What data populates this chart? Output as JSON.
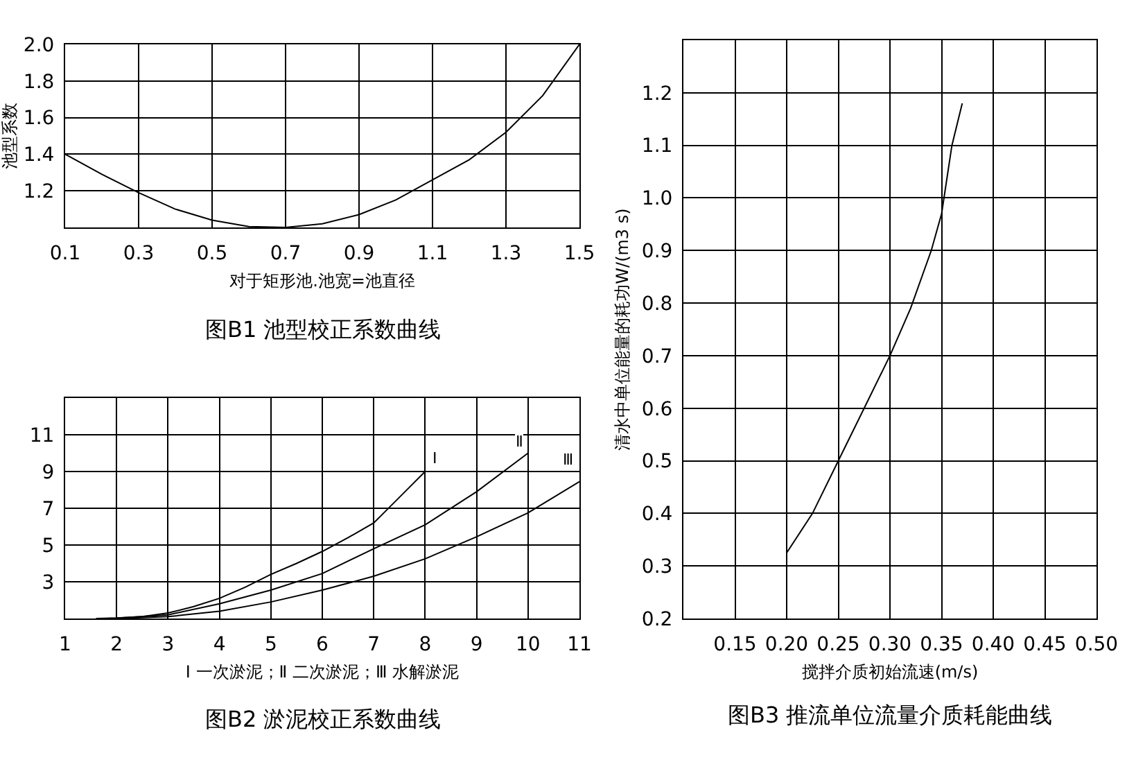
{
  "chart_data": [
    {
      "type": "line",
      "title": "图B1 池型校正系数曲线",
      "xlabel": "对于矩形池.池宽=池直径",
      "ylabel": "池型系数",
      "series": [
        {
          "color": "#000000",
          "x": [
            0.1,
            0.2,
            0.3,
            0.4,
            0.5,
            0.6,
            0.7,
            0.8,
            0.9,
            1.0,
            1.1,
            1.2,
            1.3,
            1.4,
            1.5
          ],
          "values": [
            1.4,
            1.29,
            1.19,
            1.1,
            1.04,
            1.005,
            1.0,
            1.02,
            1.07,
            1.15,
            1.26,
            1.37,
            1.52,
            1.72,
            2.0
          ]
        }
      ],
      "xlim": [
        0.1,
        1.5
      ],
      "ylim": [
        1.0,
        2.0
      ],
      "xticks": [
        0.1,
        0.3,
        0.5,
        0.7,
        0.9,
        1.1,
        1.3,
        1.5
      ],
      "yticks": [
        1.2,
        1.4,
        1.6,
        1.8,
        {
          "value": 2.0,
          "label": "2.0"
        }
      ],
      "grid": true
    },
    {
      "type": "line",
      "title": "图B2 淤泥校正系数曲线",
      "xlabel": "Ⅰ 一次淤泥；Ⅱ 二次淤泥；Ⅲ 水解淤泥",
      "series": [
        {
          "name": "Ⅰ",
          "color": "#000000",
          "x": [
            1.6,
            2,
            2.5,
            3,
            3.5,
            4,
            4.5,
            5,
            5.5,
            6,
            6.5,
            7,
            7.5,
            8
          ],
          "values": [
            1.0,
            1.03,
            1.1,
            1.3,
            1.65,
            2.1,
            2.7,
            3.4,
            4.0,
            4.65,
            5.4,
            6.2,
            7.6,
            9.0
          ]
        },
        {
          "name": "Ⅱ",
          "color": "#000000",
          "x": [
            1.8,
            2,
            3,
            4,
            5,
            6,
            7,
            8,
            9,
            10
          ],
          "values": [
            1.0,
            1.02,
            1.2,
            1.8,
            2.55,
            3.45,
            4.8,
            6.1,
            7.9,
            10.0
          ]
        },
        {
          "name": "Ⅲ",
          "color": "#000000",
          "x": [
            2,
            3,
            4,
            5,
            6,
            7,
            8,
            9,
            10,
            11
          ],
          "values": [
            1.0,
            1.1,
            1.4,
            1.9,
            2.55,
            3.3,
            4.25,
            5.45,
            6.75,
            8.45
          ]
        }
      ],
      "xlim": [
        1,
        11
      ],
      "ylim": [
        1,
        13
      ],
      "xticks": [
        1,
        2,
        3,
        4,
        5,
        6,
        7,
        8,
        9,
        10,
        11
      ],
      "yticks": [
        3,
        5,
        7,
        9,
        11
      ],
      "grid": true
    },
    {
      "type": "line",
      "title": "图B3 推流单位流量介质耗能曲线",
      "xlabel": "搅拌介质初始流速(m/s)",
      "ylabel": "清水中单位能量的耗功W/(m3 s)",
      "series": [
        {
          "color": "#000000",
          "x": [
            0.2,
            0.225,
            0.25,
            0.275,
            0.3,
            0.32,
            0.34,
            0.35,
            0.36,
            0.37
          ],
          "values": [
            0.325,
            0.4,
            0.5,
            0.6,
            0.7,
            0.79,
            0.9,
            0.97,
            1.1,
            1.18
          ]
        }
      ],
      "xlim": [
        0.1,
        0.5
      ],
      "ylim": [
        0.2,
        1.3
      ],
      "xticks": [
        0.15,
        {
          "value": 0.2,
          "label": "0.20"
        },
        0.25,
        {
          "value": 0.3,
          "label": "0.30"
        },
        0.35,
        {
          "value": 0.4,
          "label": "0.40"
        },
        0.45,
        {
          "value": 0.5,
          "label": "0.50"
        }
      ],
      "yticks": [
        0.2,
        0.3,
        0.4,
        0.5,
        0.6,
        0.7,
        0.8,
        0.9,
        {
          "value": 1.0,
          "label": "1.0"
        },
        1.1,
        1.2
      ],
      "grid": true
    }
  ]
}
